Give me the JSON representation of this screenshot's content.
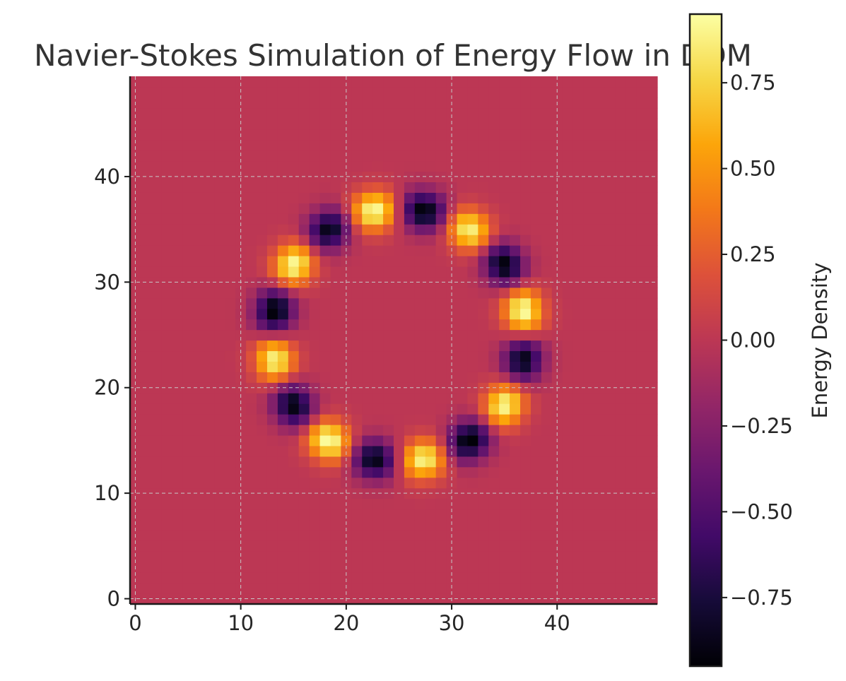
{
  "chart_data": {
    "type": "heatmap",
    "title": "Navier-Stokes Simulation of Energy Flow in DOM",
    "xlabel": "",
    "ylabel": "",
    "colorbar_label": "Energy Density",
    "colormap": "inferno",
    "grid_size": [
      50,
      50
    ],
    "xlim": [
      -0.5,
      49.5
    ],
    "ylim": [
      -0.5,
      49.5
    ],
    "origin": "lower",
    "grid": true,
    "x_ticks": [
      "0",
      "10",
      "20",
      "30",
      "40"
    ],
    "y_ticks": [
      "0",
      "10",
      "20",
      "30",
      "40"
    ],
    "x_tick_values": [
      0,
      10,
      20,
      30,
      40
    ],
    "y_tick_values": [
      0,
      10,
      20,
      30,
      40
    ],
    "colorbar_ticks": [
      "0.75",
      "0.50",
      "0.25",
      "0.00",
      "−0.25",
      "−0.50",
      "−0.75"
    ],
    "colorbar_tick_values": [
      0.75,
      0.5,
      0.25,
      0.0,
      -0.25,
      -0.5,
      -0.75
    ],
    "value_range": [
      -0.95,
      0.95
    ],
    "background_value": 0.0,
    "pattern": {
      "shape": "ring of alternating positive/negative lobes",
      "center": [
        25,
        25
      ],
      "radius": 12,
      "lobes": 16,
      "peak_value": 0.92
    }
  }
}
